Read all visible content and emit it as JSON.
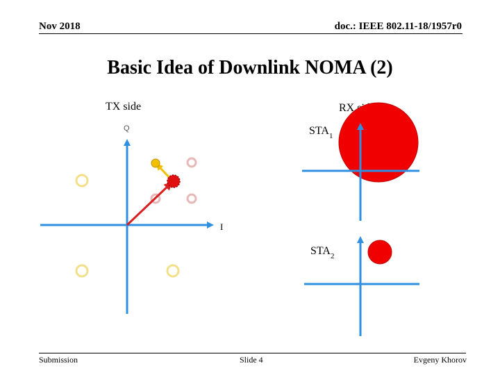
{
  "header": {
    "date": "Nov 2018",
    "doc_id": "doc.: IEEE 802.11-18/1957r0"
  },
  "slide": {
    "title": "Basic Idea of Downlink NOMA (2)"
  },
  "diagram": {
    "tx_label": "TX side",
    "rx_label": "RX side",
    "q_axis_label": "Q",
    "i_axis_label": "I",
    "sta1_label": "STA",
    "sta1_sub": "1",
    "sta2_label": "STA",
    "sta2_sub": "2",
    "colors": {
      "axis": "#2f8fe0",
      "arrow": "#d92020",
      "red_point": "#e01010",
      "yellow_point": "#f0c000",
      "pale_yellow": "#f2df8a",
      "pale_red": "#e8b8b8"
    }
  },
  "footer": {
    "left": "Submission",
    "center": "Slide 4",
    "right": "Evgeny Khorov"
  }
}
